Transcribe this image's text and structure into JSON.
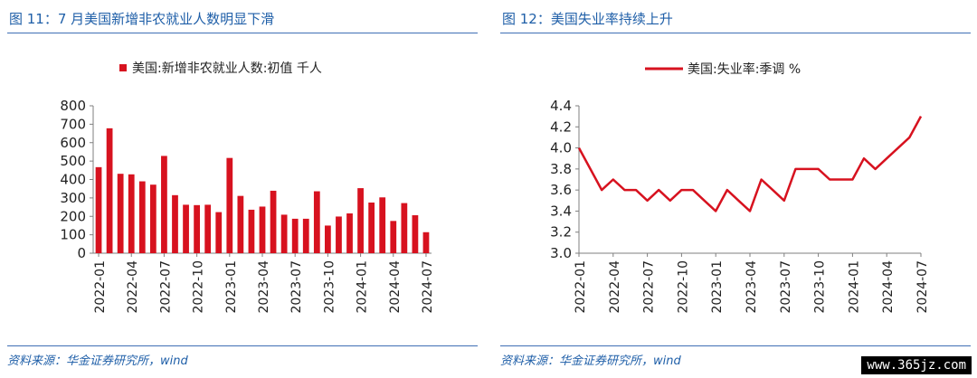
{
  "left": {
    "figure_title": "图 11：7 月美国新增非农就业人数明显下滑",
    "source": "资料来源：华金证券研究所，wind"
  },
  "right": {
    "figure_title": "图 12：美国失业率持续上升",
    "source": "资料来源：华金证券研究所，wind"
  },
  "watermark": "www.365jz.com",
  "colors": {
    "series": "#d7121f",
    "title": "#1f5fa8",
    "axis": "#7f7f7f"
  },
  "chart_data": [
    {
      "type": "bar",
      "legend": "美国:新增非农就业人数:初值 千人",
      "legend_position": "top",
      "ylim": [
        0,
        800
      ],
      "yticks": [
        0,
        100,
        200,
        300,
        400,
        500,
        600,
        700,
        800
      ],
      "xticks": [
        "2022-01",
        "2022-04",
        "2022-07",
        "2022-10",
        "2023-01",
        "2023-04",
        "2023-07",
        "2023-10",
        "2024-01",
        "2024-04",
        "2024-07"
      ],
      "grid": false,
      "categories": [
        "2022-01",
        "2022-02",
        "2022-03",
        "2022-04",
        "2022-05",
        "2022-06",
        "2022-07",
        "2022-08",
        "2022-09",
        "2022-10",
        "2022-11",
        "2022-12",
        "2023-01",
        "2023-02",
        "2023-03",
        "2023-04",
        "2023-05",
        "2023-06",
        "2023-07",
        "2023-08",
        "2023-09",
        "2023-10",
        "2023-11",
        "2023-12",
        "2024-01",
        "2024-02",
        "2024-03",
        "2024-04",
        "2024-05",
        "2024-06",
        "2024-07"
      ],
      "values": [
        467,
        678,
        431,
        428,
        390,
        372,
        528,
        315,
        263,
        261,
        263,
        223,
        517,
        311,
        236,
        253,
        339,
        209,
        187,
        187,
        336,
        150,
        199,
        216,
        353,
        275,
        303,
        175,
        272,
        206,
        114
      ]
    },
    {
      "type": "line",
      "legend": "美国:失业率:季调 %",
      "legend_position": "top",
      "ylim": [
        3.0,
        4.4
      ],
      "yticks": [
        "3.0",
        "3.2",
        "3.4",
        "3.6",
        "3.8",
        "4.0",
        "4.2",
        "4.4"
      ],
      "xticks": [
        "2022-01",
        "2022-04",
        "2022-07",
        "2022-10",
        "2023-01",
        "2023-04",
        "2023-07",
        "2023-10",
        "2024-01",
        "2024-04",
        "2024-07"
      ],
      "grid": false,
      "x": [
        "2022-01",
        "2022-02",
        "2022-03",
        "2022-04",
        "2022-05",
        "2022-06",
        "2022-07",
        "2022-08",
        "2022-09",
        "2022-10",
        "2022-11",
        "2022-12",
        "2023-01",
        "2023-02",
        "2023-03",
        "2023-04",
        "2023-05",
        "2023-06",
        "2023-07",
        "2023-08",
        "2023-09",
        "2023-10",
        "2023-11",
        "2023-12",
        "2024-01",
        "2024-02",
        "2024-03",
        "2024-04",
        "2024-05",
        "2024-06",
        "2024-07"
      ],
      "values": [
        4.0,
        3.8,
        3.6,
        3.7,
        3.6,
        3.6,
        3.5,
        3.6,
        3.5,
        3.6,
        3.6,
        3.5,
        3.4,
        3.6,
        3.5,
        3.4,
        3.7,
        3.6,
        3.5,
        3.8,
        3.8,
        3.8,
        3.7,
        3.7,
        3.7,
        3.9,
        3.8,
        3.9,
        4.0,
        4.1,
        4.3
      ]
    }
  ]
}
